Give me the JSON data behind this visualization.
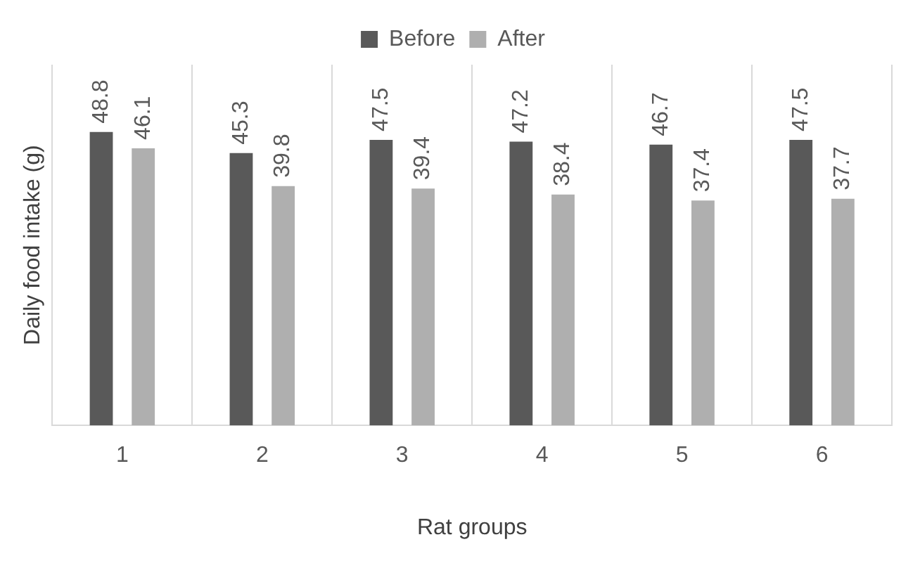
{
  "chart_data": {
    "type": "bar",
    "xlabel": "Rat groups",
    "ylabel": "Daily food intake (g)",
    "categories": [
      "1",
      "2",
      "3",
      "4",
      "5",
      "6"
    ],
    "series": [
      {
        "name": "Before",
        "color": "#595959",
        "values": [
          48.8,
          45.3,
          47.5,
          47.2,
          46.7,
          47.5
        ]
      },
      {
        "name": "After",
        "color": "#afafaf",
        "values": [
          46.1,
          39.8,
          39.4,
          38.4,
          37.4,
          37.7
        ]
      }
    ],
    "ylim": [
      0,
      60
    ],
    "tick_labels": "x",
    "grid": "x",
    "legend": "top",
    "data_labels": true
  }
}
